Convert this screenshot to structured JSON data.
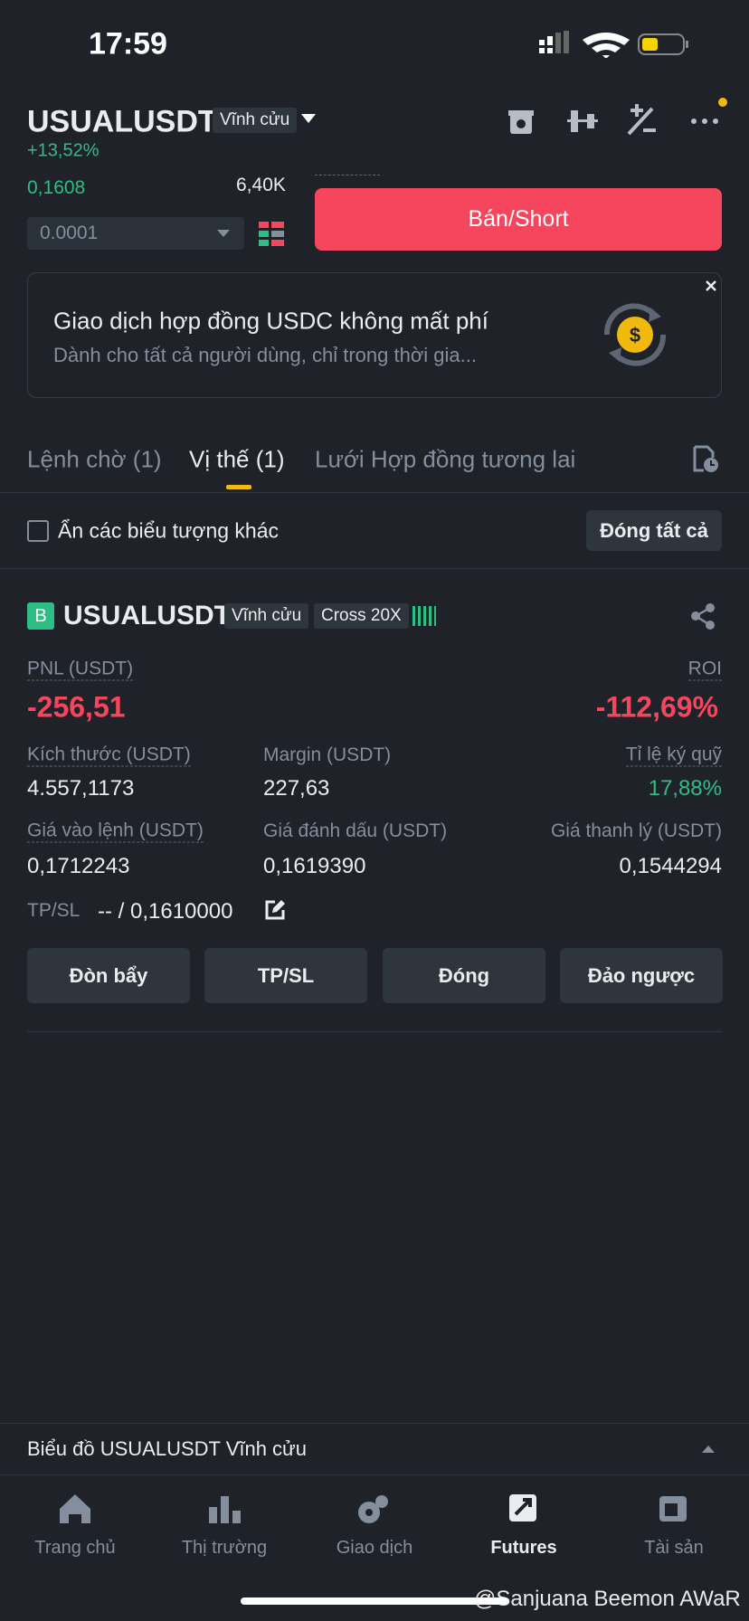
{
  "status": {
    "time": "17:59"
  },
  "header": {
    "symbol": "USUALUSDT",
    "badge": "Vĩnh cửu",
    "change": "+13,52%"
  },
  "orderbook": {
    "price": "0,1608",
    "qty": "6,40K",
    "step": "0.0001"
  },
  "sell_button": "Bán/Short",
  "promo": {
    "title": "Giao dịch hợp đồng USDC không mất phí",
    "subtitle": "Dành cho tất cả người dùng, chỉ trong thời gia..."
  },
  "tabs": [
    "Lệnh chờ (1)",
    "Vị thế (1)",
    "Lưới Hợp đồng tương lai"
  ],
  "hide_label": "Ẩn các biểu tượng khác",
  "close_all": "Đóng tất cả",
  "position": {
    "side": "B",
    "symbol": "USUALUSDT",
    "tags": [
      "Vĩnh cửu",
      "Cross 20X"
    ],
    "pnl_label": "PNL (USDT)",
    "pnl": "-256,51",
    "roi_label": "ROI",
    "roi": "-112,69%",
    "fields": [
      {
        "label": "Kích thước (USDT)",
        "value": "4.557,1173"
      },
      {
        "label": "Margin (USDT)",
        "value": "227,63"
      },
      {
        "label": "Tỉ lệ ký quỹ",
        "value": "17,88%"
      },
      {
        "label": "Giá vào lệnh (USDT)",
        "value": "0,1712243"
      },
      {
        "label": "Giá đánh dấu (USDT)",
        "value": "0,1619390"
      },
      {
        "label": "Giá thanh lý (USDT)",
        "value": "0,1544294"
      }
    ],
    "tpsl_label": "TP/SL",
    "tpsl_value": "-- / 0,1610000"
  },
  "actions": [
    "Đòn bẩy",
    "TP/SL",
    "Đóng",
    "Đảo ngược"
  ],
  "chart_bar": "Biểu đồ USUALUSDT Vĩnh cửu",
  "nav": [
    "Trang chủ",
    "Thị trường",
    "Giao dịch",
    "Futures",
    "Tài sản"
  ],
  "watermark": "@Sanjuana Beemon AWaR"
}
